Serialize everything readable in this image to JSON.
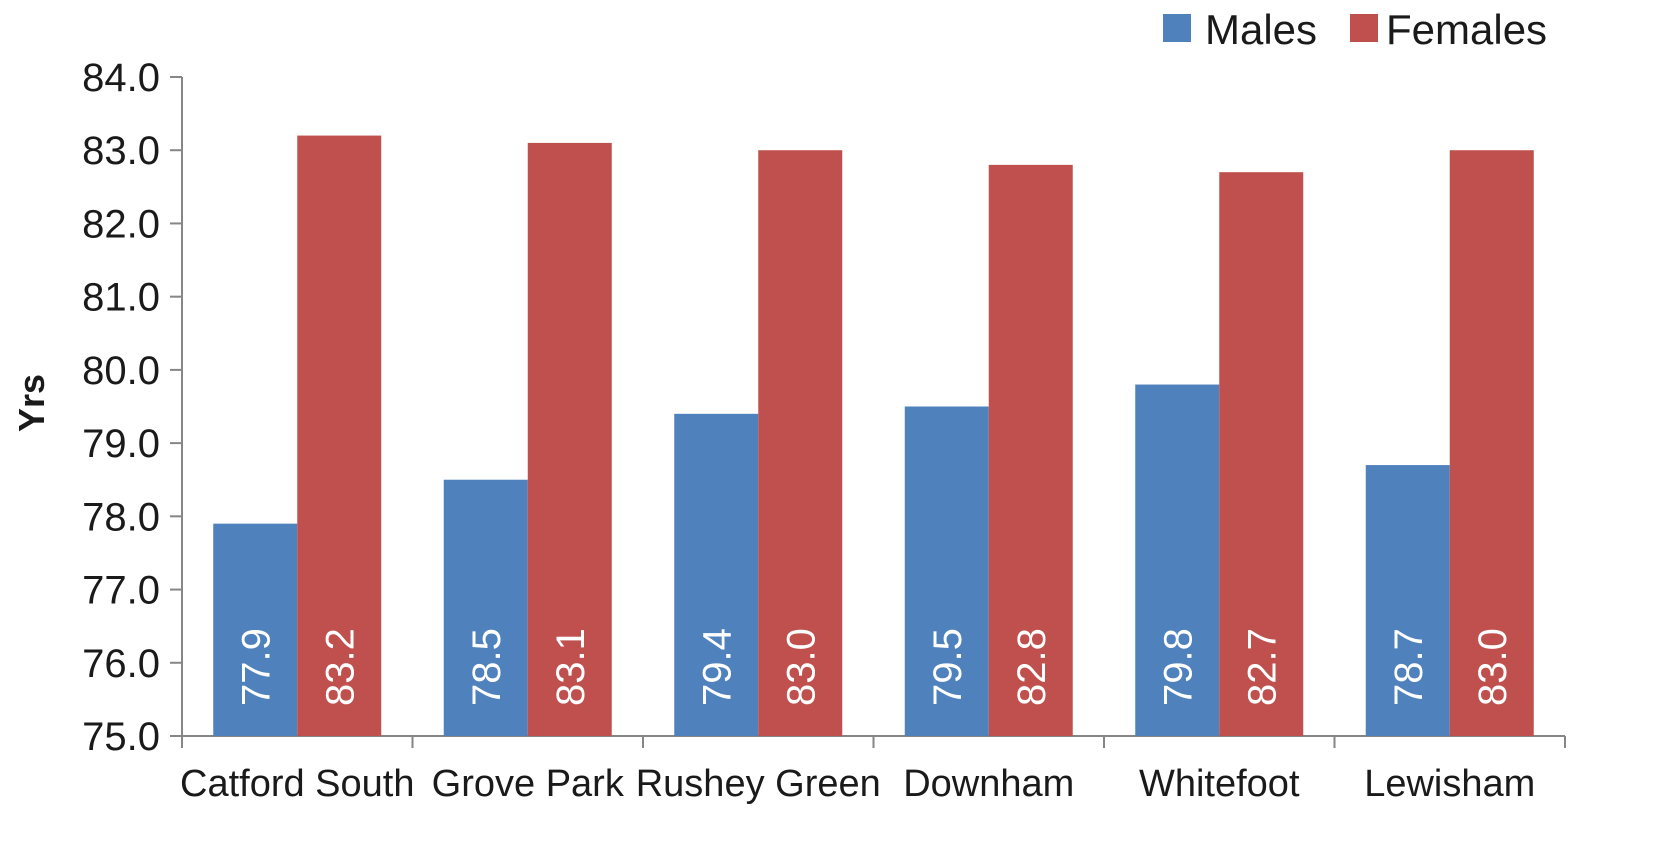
{
  "chart_data": {
    "type": "bar",
    "ylabel": "Yrs",
    "ylim": [
      75.0,
      84.0
    ],
    "ytick_step": 1.0,
    "yticks": [
      "75.0",
      "76.0",
      "77.0",
      "78.0",
      "79.0",
      "80.0",
      "81.0",
      "82.0",
      "83.0",
      "84.0"
    ],
    "categories": [
      "Catford South",
      "Grove Park",
      "Rushey Green",
      "Downham",
      "Whitefoot",
      "Lewisham"
    ],
    "series": [
      {
        "name": "Males",
        "color": "#4F81BD",
        "values": [
          77.9,
          78.5,
          79.4,
          79.5,
          79.8,
          78.7
        ],
        "labels": [
          "77.9",
          "78.5",
          "79.4",
          "79.5",
          "79.8",
          "78.7"
        ]
      },
      {
        "name": "Females",
        "color": "#C0504D",
        "values": [
          83.2,
          83.1,
          83.0,
          82.8,
          82.7,
          83.0
        ],
        "labels": [
          "83.2",
          "83.1",
          "83.0",
          "82.8",
          "82.7",
          "83.0"
        ]
      }
    ],
    "legend_position": "top-right",
    "data_labels": "inside-base-rotated",
    "grid": false
  }
}
